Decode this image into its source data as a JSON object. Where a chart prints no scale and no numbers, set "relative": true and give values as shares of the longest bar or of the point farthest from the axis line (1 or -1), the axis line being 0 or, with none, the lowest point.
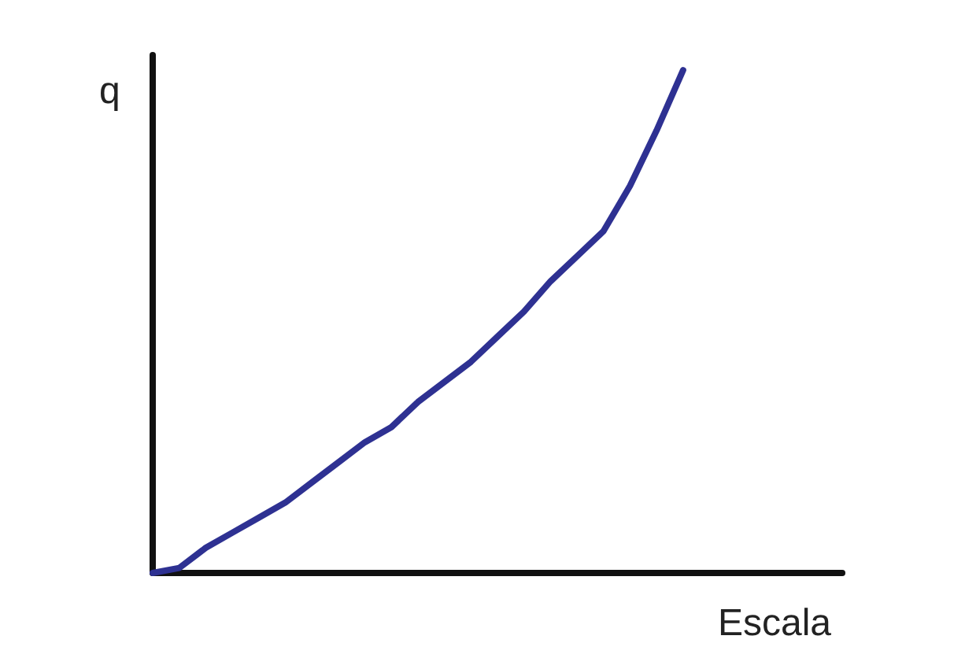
{
  "chart_data": {
    "type": "line",
    "relative": true,
    "xlabel": "Escala",
    "ylabel": "q",
    "categories": [
      null,
      null,
      null,
      null,
      null,
      null,
      null,
      null,
      null,
      null,
      null,
      null,
      null,
      null,
      null,
      null,
      null,
      null,
      null,
      null,
      null,
      null,
      null,
      null,
      null,
      null,
      null
    ],
    "series": [
      {
        "color": "#2e3192",
        "values": [
          0,
          0.01,
          0.05,
          0.08,
          0.11,
          0.14,
          0.18,
          0.22,
          0.26,
          0.29,
          0.34,
          0.38,
          0.42,
          0.47,
          0.52,
          0.58,
          0.63,
          0.68,
          0.77,
          0.88,
          1.0,
          null,
          null,
          null,
          null,
          null,
          null
        ]
      }
    ],
    "grid": false
  }
}
